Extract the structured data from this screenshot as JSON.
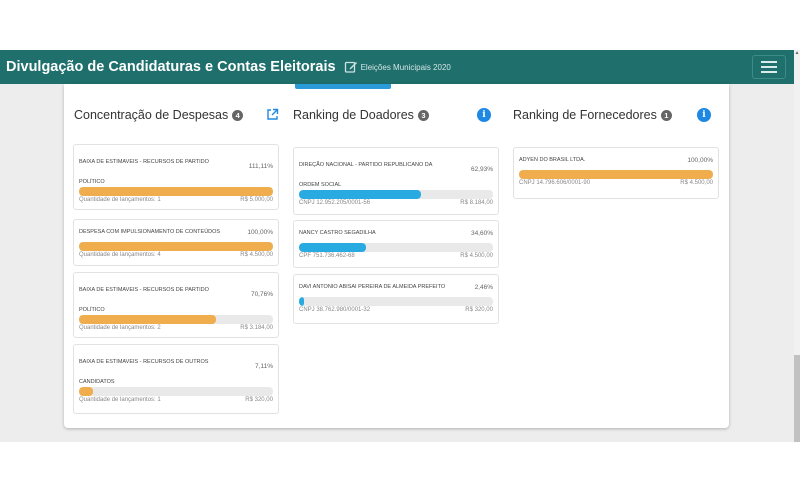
{
  "header": {
    "title": "Divulgação de Candidaturas e Contas Eleitorais",
    "subtitle": "Eleições Municipais 2020",
    "edit_icon": "edit-icon",
    "menu_icon": "hamburger-menu-icon",
    "bg_color": "#1f6f6c"
  },
  "despesas": {
    "title": "Concentração de Despesas",
    "badge": "4",
    "icon": "external-link-icon",
    "bar_color": "#f0ad4e",
    "items": [
      {
        "name": "BAIXA DE ESTIMAVEIS - RECURSOS DE PARTIDO POLÍTICO",
        "pct": "111,11%",
        "fill": 1.0,
        "left": "Quantidade de lançamentos: 1",
        "right": "R$ 5.000,00"
      },
      {
        "name": "DESPESA COM IMPULSIONAMENTO DE CONTEÚDOS",
        "pct": "100,00%",
        "fill": 1.0,
        "left": "Quantidade de lançamentos: 4",
        "right": "R$ 4.500,00"
      },
      {
        "name": "BAIXA DE ESTIMAVEIS - RECURSOS DE PARTIDO POLÍTICO",
        "pct": "70,76%",
        "fill": 0.7076,
        "left": "Quantidade de lançamentos: 2",
        "right": "R$ 3.184,00"
      },
      {
        "name": "BAIXA DE ESTIMAVEIS - RECURSOS DE OUTROS CANDIDATOS",
        "pct": "7,11%",
        "fill": 0.0711,
        "left": "Quantidade de lançamentos: 1",
        "right": "R$ 320,00"
      }
    ]
  },
  "doadores": {
    "title": "Ranking de Doadores",
    "badge": "3",
    "icon": "info-icon",
    "bar_color": "#29abe2",
    "items": [
      {
        "name": "DIREÇÃO NACIONAL - PARTIDO REPUBLICANO DA ORDEM SOCIAL",
        "pct": "62,93%",
        "fill": 0.6293,
        "left": "CNPJ 12.952.205/0001-56",
        "right": "R$ 8.184,00"
      },
      {
        "name": "NANCY CASTRO SEGADILHA",
        "pct": "34,60%",
        "fill": 0.346,
        "left": "CPF 751.736.462-68",
        "right": "R$ 4.500,00"
      },
      {
        "name": "DAVI ANTONIO ABISAI PEREIRA DE ALMEIDA PREFEITO",
        "pct": "2,46%",
        "fill": 0.0246,
        "left": "CNPJ 38.762.980/0001-32",
        "right": "R$ 320,00"
      }
    ]
  },
  "fornecedores": {
    "title": "Ranking de Fornecedores",
    "badge": "1",
    "icon": "info-icon",
    "bar_color": "#f0ad4e",
    "items": [
      {
        "name": "ADYEN DO BRASIL LTDA.",
        "pct": "100,00%",
        "fill": 1.0,
        "left": "CNPJ 14.796.606/0001-90",
        "right": "R$ 4.500,00"
      }
    ]
  }
}
